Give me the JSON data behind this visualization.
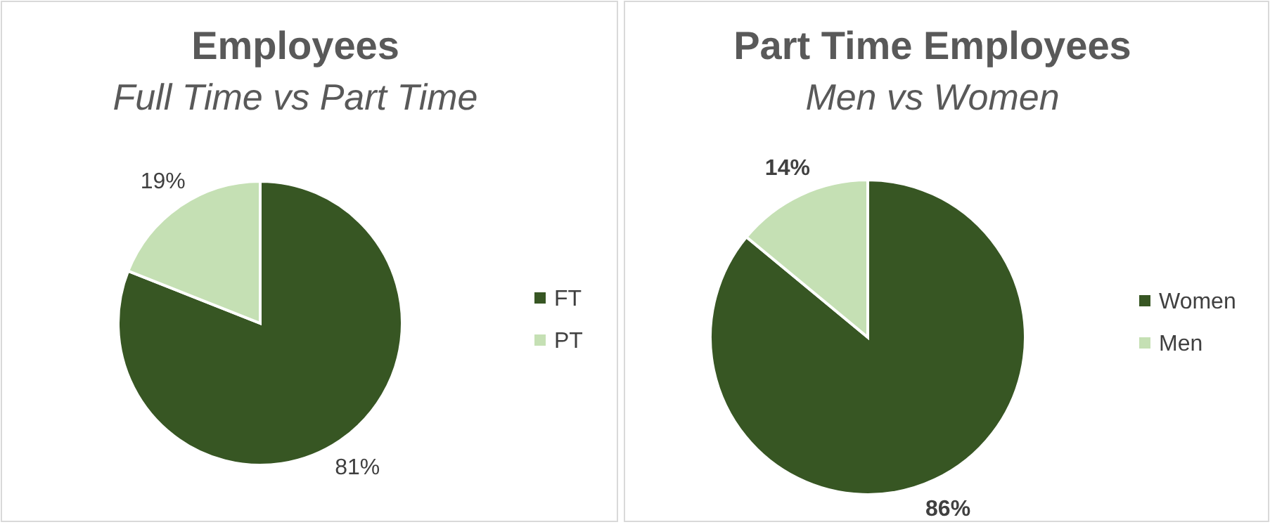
{
  "chart_data": [
    {
      "type": "pie",
      "title": "Employees",
      "subtitle": "Full Time vs Part Time",
      "categories": [
        "FT",
        "PT"
      ],
      "values": [
        81,
        19
      ],
      "value_labels": [
        "81%",
        "19%"
      ],
      "colors": [
        "#375623",
        "#c5e0b4"
      ],
      "legend": "right"
    },
    {
      "type": "pie",
      "title": "Part Time Employees",
      "subtitle": "Men vs Women",
      "categories": [
        "Women",
        "Men"
      ],
      "values": [
        86,
        14
      ],
      "value_labels": [
        "86%",
        "14%"
      ],
      "colors": [
        "#375623",
        "#c5e0b4"
      ],
      "legend": "right"
    }
  ]
}
